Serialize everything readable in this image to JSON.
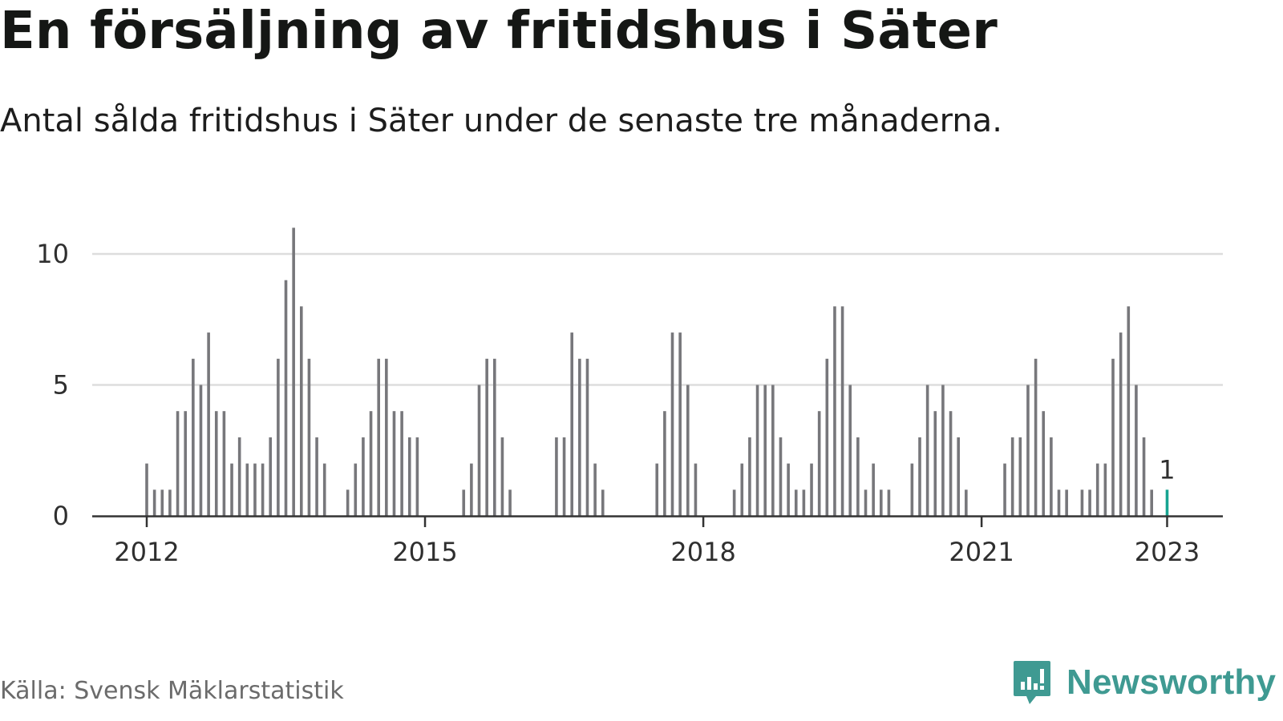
{
  "title": "En försäljning av fritidshus i Säter",
  "subtitle": "Antal sålda fritidshus i Säter under de senaste tre månaderna.",
  "source": "Källa: Svensk Mäklarstatistik",
  "brand": {
    "name": "Newsworthy",
    "icon": "newsworthy-logo-icon",
    "color": "#3f9a92"
  },
  "colors": {
    "bar": "#77777b",
    "highlight": "#17a491",
    "grid": "#dddddd",
    "axis": "#333333"
  },
  "chart_data": {
    "type": "bar",
    "title": "En försäljning av fritidshus i Säter",
    "subtitle": "Antal sålda fritidshus i Säter under de senaste tre månaderna.",
    "xlabel": "",
    "ylabel": "",
    "ylim": [
      0,
      11
    ],
    "xlim": [
      "2011-06",
      "2023-08"
    ],
    "grid": true,
    "y_ticks": [
      0,
      5,
      10
    ],
    "x_ticks": [
      {
        "label": "2012",
        "date": "2012-01"
      },
      {
        "label": "2015",
        "date": "2015-01"
      },
      {
        "label": "2018",
        "date": "2018-01"
      },
      {
        "label": "2021",
        "date": "2021-01"
      },
      {
        "label": "2023",
        "date": "2023-01"
      }
    ],
    "highlight": {
      "date": "2023-01",
      "value": 1,
      "label": "1"
    },
    "series": [
      {
        "points": [
          [
            "2012-01",
            2
          ],
          [
            "2012-02",
            1
          ],
          [
            "2012-03",
            1
          ],
          [
            "2012-04",
            1
          ],
          [
            "2012-05",
            4
          ],
          [
            "2012-06",
            4
          ],
          [
            "2012-07",
            6
          ],
          [
            "2012-08",
            5
          ],
          [
            "2012-09",
            7
          ],
          [
            "2012-10",
            4
          ],
          [
            "2012-11",
            4
          ],
          [
            "2012-12",
            2
          ],
          [
            "2013-01",
            3
          ],
          [
            "2013-02",
            2
          ],
          [
            "2013-03",
            2
          ],
          [
            "2013-04",
            2
          ],
          [
            "2013-05",
            3
          ],
          [
            "2013-06",
            6
          ],
          [
            "2013-07",
            9
          ],
          [
            "2013-08",
            11
          ],
          [
            "2013-09",
            8
          ],
          [
            "2013-10",
            6
          ],
          [
            "2013-11",
            3
          ],
          [
            "2013-12",
            2
          ],
          [
            "2014-03",
            1
          ],
          [
            "2014-04",
            2
          ],
          [
            "2014-05",
            3
          ],
          [
            "2014-06",
            4
          ],
          [
            "2014-07",
            6
          ],
          [
            "2014-08",
            6
          ],
          [
            "2014-09",
            4
          ],
          [
            "2014-10",
            4
          ],
          [
            "2014-11",
            3
          ],
          [
            "2014-12",
            3
          ],
          [
            "2015-06",
            1
          ],
          [
            "2015-07",
            2
          ],
          [
            "2015-08",
            5
          ],
          [
            "2015-09",
            6
          ],
          [
            "2015-10",
            6
          ],
          [
            "2015-11",
            3
          ],
          [
            "2015-12",
            1
          ],
          [
            "2016-06",
            3
          ],
          [
            "2016-07",
            3
          ],
          [
            "2016-08",
            7
          ],
          [
            "2016-09",
            6
          ],
          [
            "2016-10",
            6
          ],
          [
            "2016-11",
            2
          ],
          [
            "2016-12",
            1
          ],
          [
            "2017-07",
            2
          ],
          [
            "2017-08",
            4
          ],
          [
            "2017-09",
            7
          ],
          [
            "2017-10",
            7
          ],
          [
            "2017-11",
            5
          ],
          [
            "2017-12",
            2
          ],
          [
            "2018-05",
            1
          ],
          [
            "2018-06",
            2
          ],
          [
            "2018-07",
            3
          ],
          [
            "2018-08",
            5
          ],
          [
            "2018-09",
            5
          ],
          [
            "2018-10",
            5
          ],
          [
            "2018-11",
            3
          ],
          [
            "2018-12",
            2
          ],
          [
            "2019-01",
            1
          ],
          [
            "2019-02",
            1
          ],
          [
            "2019-03",
            2
          ],
          [
            "2019-04",
            4
          ],
          [
            "2019-05",
            6
          ],
          [
            "2019-06",
            8
          ],
          [
            "2019-07",
            8
          ],
          [
            "2019-08",
            5
          ],
          [
            "2019-09",
            3
          ],
          [
            "2019-10",
            1
          ],
          [
            "2019-11",
            2
          ],
          [
            "2019-12",
            1
          ],
          [
            "2020-01",
            1
          ],
          [
            "2020-04",
            2
          ],
          [
            "2020-05",
            3
          ],
          [
            "2020-06",
            5
          ],
          [
            "2020-07",
            4
          ],
          [
            "2020-08",
            5
          ],
          [
            "2020-09",
            4
          ],
          [
            "2020-10",
            3
          ],
          [
            "2020-11",
            1
          ],
          [
            "2021-04",
            2
          ],
          [
            "2021-05",
            3
          ],
          [
            "2021-06",
            3
          ],
          [
            "2021-07",
            5
          ],
          [
            "2021-08",
            6
          ],
          [
            "2021-09",
            4
          ],
          [
            "2021-10",
            3
          ],
          [
            "2021-11",
            1
          ],
          [
            "2021-12",
            1
          ],
          [
            "2022-02",
            1
          ],
          [
            "2022-03",
            1
          ],
          [
            "2022-04",
            2
          ],
          [
            "2022-05",
            2
          ],
          [
            "2022-06",
            6
          ],
          [
            "2022-07",
            7
          ],
          [
            "2022-08",
            8
          ],
          [
            "2022-09",
            5
          ],
          [
            "2022-10",
            3
          ],
          [
            "2022-11",
            1
          ],
          [
            "2023-01",
            1
          ]
        ]
      }
    ]
  }
}
